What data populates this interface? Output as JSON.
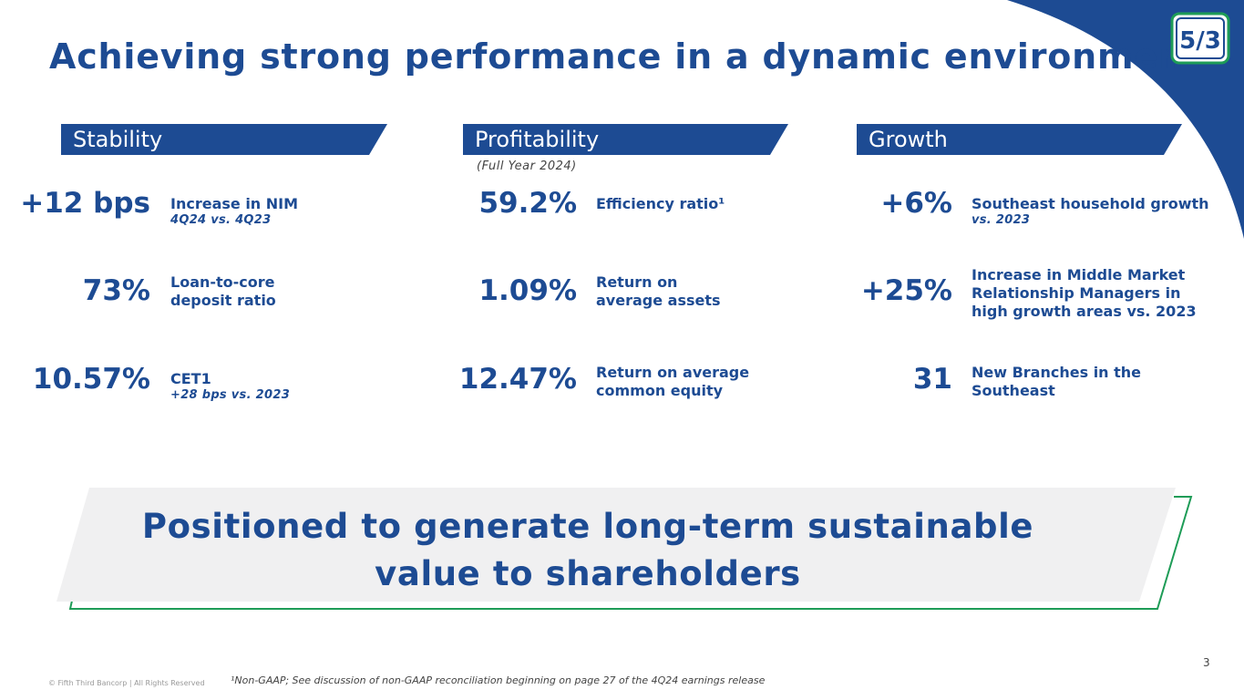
{
  "title": "Achieving strong performance in a dynamic environment",
  "logo_text": "5/3",
  "colors": {
    "primary": "#1d4b93",
    "accent_green": "#1e9c57"
  },
  "columns": [
    {
      "header": "Stability",
      "metrics": [
        {
          "value": "+12 bps",
          "label": "Increase in NIM",
          "sub": "4Q24 vs. 4Q23"
        },
        {
          "value": "73%",
          "label": "Loan-to-core\ndeposit ratio"
        },
        {
          "value": "10.57%",
          "label": "CET1",
          "sub": "+28 bps vs. 2023"
        }
      ]
    },
    {
      "header": "Profitability",
      "subtitle": "(Full Year 2024)",
      "metrics": [
        {
          "value": "59.2%",
          "label": "Efficiency ratio¹"
        },
        {
          "value": "1.09%",
          "label": "Return on\naverage assets"
        },
        {
          "value": "12.47%",
          "label": "Return on average\ncommon equity"
        }
      ]
    },
    {
      "header": "Growth",
      "metrics": [
        {
          "value": "+6%",
          "label": "Southeast household growth",
          "sub": "vs. 2023"
        },
        {
          "value": "+25%",
          "label": "Increase in Middle Market\nRelationship Managers in\nhigh growth areas vs. 2023"
        },
        {
          "value": "31",
          "label": "New Branches in the\nSoutheast"
        }
      ]
    }
  ],
  "banner": "Positioned to generate long-term sustainable\nvalue to shareholders",
  "footer": {
    "copyright": "© Fifth Third Bancorp | All Rights Reserved",
    "footnote": "¹Non-GAAP; See discussion of non-GAAP reconciliation beginning on page 27 of the 4Q24 earnings release",
    "page": "3"
  }
}
